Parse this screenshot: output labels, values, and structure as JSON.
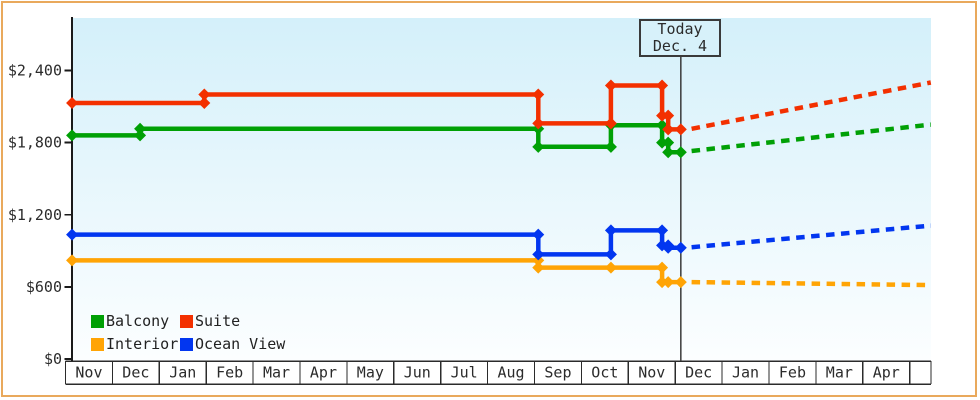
{
  "chart_data": {
    "type": "line",
    "description": "Stepped price history by cabin category with dashed future projection after today",
    "x_unit": "months_since_first_Nov",
    "x_axis": {
      "months": [
        "Nov",
        "Dec",
        "Jan",
        "Feb",
        "Mar",
        "Apr",
        "May",
        "Jun",
        "Jul",
        "Aug",
        "Sep",
        "Oct",
        "Nov",
        "Dec",
        "Jan",
        "Feb",
        "Mar",
        "Apr"
      ],
      "xlim": [
        0,
        18.45
      ]
    },
    "y_axis": {
      "ticks": [
        {
          "label": "$2,400",
          "value": 2400
        },
        {
          "label": "$1,800",
          "value": 1800
        },
        {
          "label": "$1,200",
          "value": 1200
        },
        {
          "label": "$600",
          "value": 600
        },
        {
          "label": "$0",
          "value": 0
        }
      ],
      "ylim": [
        0,
        2835
      ],
      "grid": false
    },
    "today_marker": {
      "line1": "Today",
      "line2": "Dec. 4",
      "month_unit": 13.12
    },
    "legend_position": "bottom-left inside plot",
    "series": [
      {
        "name": "Balcony",
        "color": "#00a005",
        "solid": [
          [
            0.14,
            1860
          ],
          [
            1.59,
            1860
          ],
          [
            1.59,
            1915
          ],
          [
            10.08,
            1915
          ],
          [
            10.08,
            1765
          ],
          [
            11.63,
            1765
          ],
          [
            11.63,
            1945
          ],
          [
            12.72,
            1945
          ],
          [
            12.72,
            1800
          ],
          [
            12.85,
            1800
          ],
          [
            12.85,
            1720
          ],
          [
            13.12,
            1720
          ]
        ],
        "dashed": [
          [
            13.35,
            1730
          ],
          [
            18.45,
            1950
          ]
        ]
      },
      {
        "name": "Suite",
        "color": "#f33000",
        "solid": [
          [
            0.14,
            2130
          ],
          [
            2.96,
            2130
          ],
          [
            2.96,
            2200
          ],
          [
            10.08,
            2200
          ],
          [
            10.08,
            1960
          ],
          [
            11.63,
            1960
          ],
          [
            11.63,
            2275
          ],
          [
            12.72,
            2275
          ],
          [
            12.72,
            2025
          ],
          [
            12.85,
            2025
          ],
          [
            12.85,
            1910
          ],
          [
            13.12,
            1910
          ]
        ],
        "dashed": [
          [
            13.35,
            1915
          ],
          [
            18.45,
            2300
          ]
        ]
      },
      {
        "name": "Interior",
        "color": "#ffa405",
        "solid": [
          [
            0.14,
            820
          ],
          [
            10.08,
            820
          ],
          [
            10.08,
            760
          ],
          [
            11.63,
            760
          ],
          [
            12.72,
            760
          ],
          [
            12.72,
            640
          ],
          [
            12.85,
            640
          ],
          [
            13.12,
            640
          ]
        ],
        "dashed": [
          [
            13.35,
            640
          ],
          [
            18.45,
            615
          ]
        ]
      },
      {
        "name": "Ocean View",
        "color": "#0236f0",
        "solid": [
          [
            0.14,
            1035
          ],
          [
            10.08,
            1035
          ],
          [
            10.08,
            870
          ],
          [
            11.63,
            870
          ],
          [
            11.63,
            1070
          ],
          [
            12.72,
            1070
          ],
          [
            12.72,
            945
          ],
          [
            12.85,
            945
          ],
          [
            12.85,
            925
          ],
          [
            13.12,
            925
          ]
        ],
        "dashed": [
          [
            13.35,
            930
          ],
          [
            18.45,
            1110
          ]
        ]
      }
    ],
    "colors": {
      "plot_bg_top": "#d4f0fa",
      "plot_bg_bottom": "#fcfeff",
      "frame_border": "#e9a95c",
      "axis": "#2b2b2b",
      "text": "#2b2b2b"
    }
  }
}
